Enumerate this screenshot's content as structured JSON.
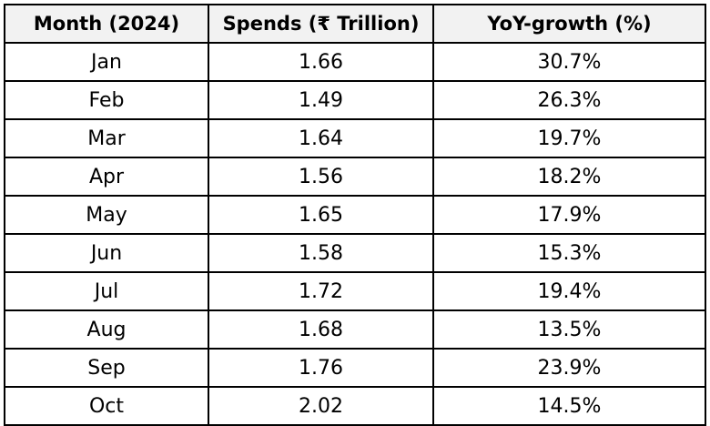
{
  "table": {
    "headers": [
      "Month (2024)",
      "Spends (₹ Trillion)",
      "YoY-growth (%)"
    ],
    "rows": [
      [
        "Jan",
        "1.66",
        "30.7%"
      ],
      [
        "Feb",
        "1.49",
        "26.3%"
      ],
      [
        "Mar",
        "1.64",
        "19.7%"
      ],
      [
        "Apr",
        "1.56",
        "18.2%"
      ],
      [
        "May",
        "1.65",
        "17.9%"
      ],
      [
        "Jun",
        "1.58",
        "15.3%"
      ],
      [
        "Jul",
        "1.72",
        "19.4%"
      ],
      [
        "Aug",
        "1.68",
        "13.5%"
      ],
      [
        "Sep",
        "1.76",
        "23.9%"
      ],
      [
        "Oct",
        "2.02",
        "14.5%"
      ]
    ]
  },
  "colors": {
    "header_bg": "#f2f2f2",
    "border": "#000000",
    "text": "#000000",
    "cell_bg": "#ffffff"
  }
}
